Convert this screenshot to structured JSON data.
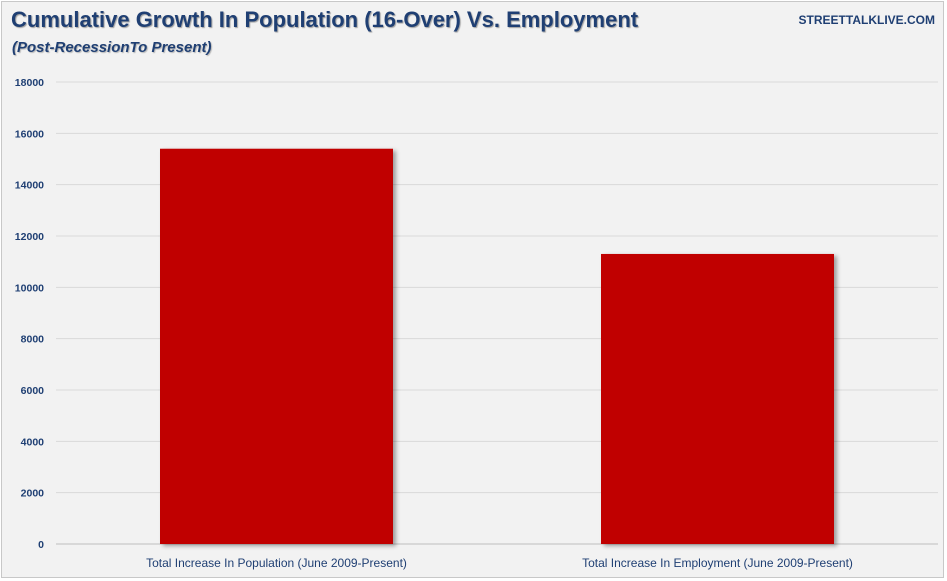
{
  "chart_data": {
    "type": "bar",
    "title": "Cumulative Growth In Population (16-Over) Vs. Employment",
    "subtitle": "(Post-RecessionTo Present)",
    "watermark": "STREETTALKLIVE.COM",
    "categories": [
      "Total Increase In Population (June 2009-Present)",
      "Total Increase In Employment (June 2009-Present)"
    ],
    "values": [
      15400,
      11300
    ],
    "xlabel": "",
    "ylabel": "",
    "ylim": [
      0,
      18000
    ],
    "yticks": [
      "0",
      "2000",
      "4000",
      "6000",
      "8000",
      "10000",
      "12000",
      "14000",
      "16000",
      "18000"
    ],
    "grid": true,
    "legend": "none",
    "bar_color": "#c00000",
    "grid_color": "#d9d9d9"
  }
}
